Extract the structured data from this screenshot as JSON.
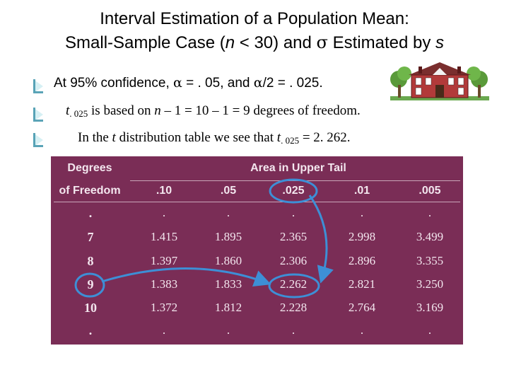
{
  "title": {
    "line1": "Interval Estimation of a Population Mean:",
    "line2_pre": "Small-Sample Case (",
    "line2_n": "n",
    "line2_mid": " < 30) and ",
    "line2_sigma": "σ",
    "line2_post": "  Estimated by ",
    "line2_s": "s"
  },
  "bullets": {
    "b1": {
      "pre": "At 95% confidence, ",
      "alpha": "α",
      "mid": " = . 05, and ",
      "alpha2": "α",
      "post": "/2 = . 025."
    },
    "b2": {
      "t": "t",
      "sub": ". 025",
      "text": " is based on ",
      "n": "n",
      "rest": " – 1 = 10 – 1 = 9 degrees of freedom."
    },
    "b3": {
      "pre": "In the ",
      "t": "t",
      "mid": "  distribution table we see that ",
      "t2": "t",
      "sub": ". 025",
      "post": " = 2. 262."
    }
  },
  "table": {
    "header_df_line1": "Degrees",
    "header_df_line2": "of Freedom",
    "header_tail": "Area in Upper Tail",
    "columns": [
      ".10",
      ".05",
      ".025",
      ".01",
      ".005"
    ],
    "rows": [
      {
        "df": ".",
        "values": [
          ".",
          ".",
          ".",
          ".",
          "."
        ]
      },
      {
        "df": "7",
        "values": [
          "1.415",
          "1.895",
          "2.365",
          "2.998",
          "3.499"
        ]
      },
      {
        "df": "8",
        "values": [
          "1.397",
          "1.860",
          "2.306",
          "2.896",
          "3.355"
        ]
      },
      {
        "df": "9",
        "values": [
          "1.383",
          "1.833",
          "2.262",
          "2.821",
          "3.250"
        ]
      },
      {
        "df": "10",
        "values": [
          "1.372",
          "1.812",
          "2.228",
          "2.764",
          "3.169"
        ]
      },
      {
        "df": ".",
        "values": [
          ".",
          ".",
          ".",
          ".",
          "."
        ]
      }
    ]
  },
  "colors": {
    "table_bg": "#7a2d56",
    "table_text": "#f3e6ee",
    "highlight": "#3d8fd6"
  }
}
